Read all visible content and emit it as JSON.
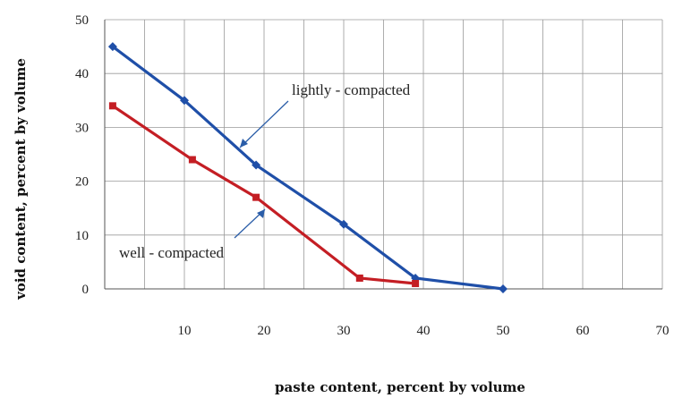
{
  "chart_data": {
    "type": "line",
    "title": "",
    "xlabel": "paste content, percent by volume",
    "ylabel": "void content, percent by volume",
    "xlim": [
      0,
      70
    ],
    "ylim": [
      0,
      50
    ],
    "x_ticks": [
      "10",
      "20",
      "30",
      "40",
      "50",
      "60",
      "70"
    ],
    "y_ticks": [
      "0",
      "10",
      "20",
      "30",
      "40",
      "50"
    ],
    "grid": true,
    "series": [
      {
        "name": "lightly - compacted",
        "color": "#1f4fa8",
        "marker": "diamond",
        "x": [
          1,
          10,
          19,
          30,
          39,
          50
        ],
        "y": [
          45,
          35,
          23,
          12,
          2,
          0
        ]
      },
      {
        "name": "well - compacted",
        "color": "#c41e24",
        "marker": "square",
        "x": [
          1,
          11,
          19,
          32,
          39
        ],
        "y": [
          34,
          24,
          17,
          2,
          1
        ]
      }
    ],
    "annotations": [
      {
        "text": "lightly - compacted",
        "series": 0
      },
      {
        "text": "well - compacted",
        "series": 1
      }
    ]
  }
}
